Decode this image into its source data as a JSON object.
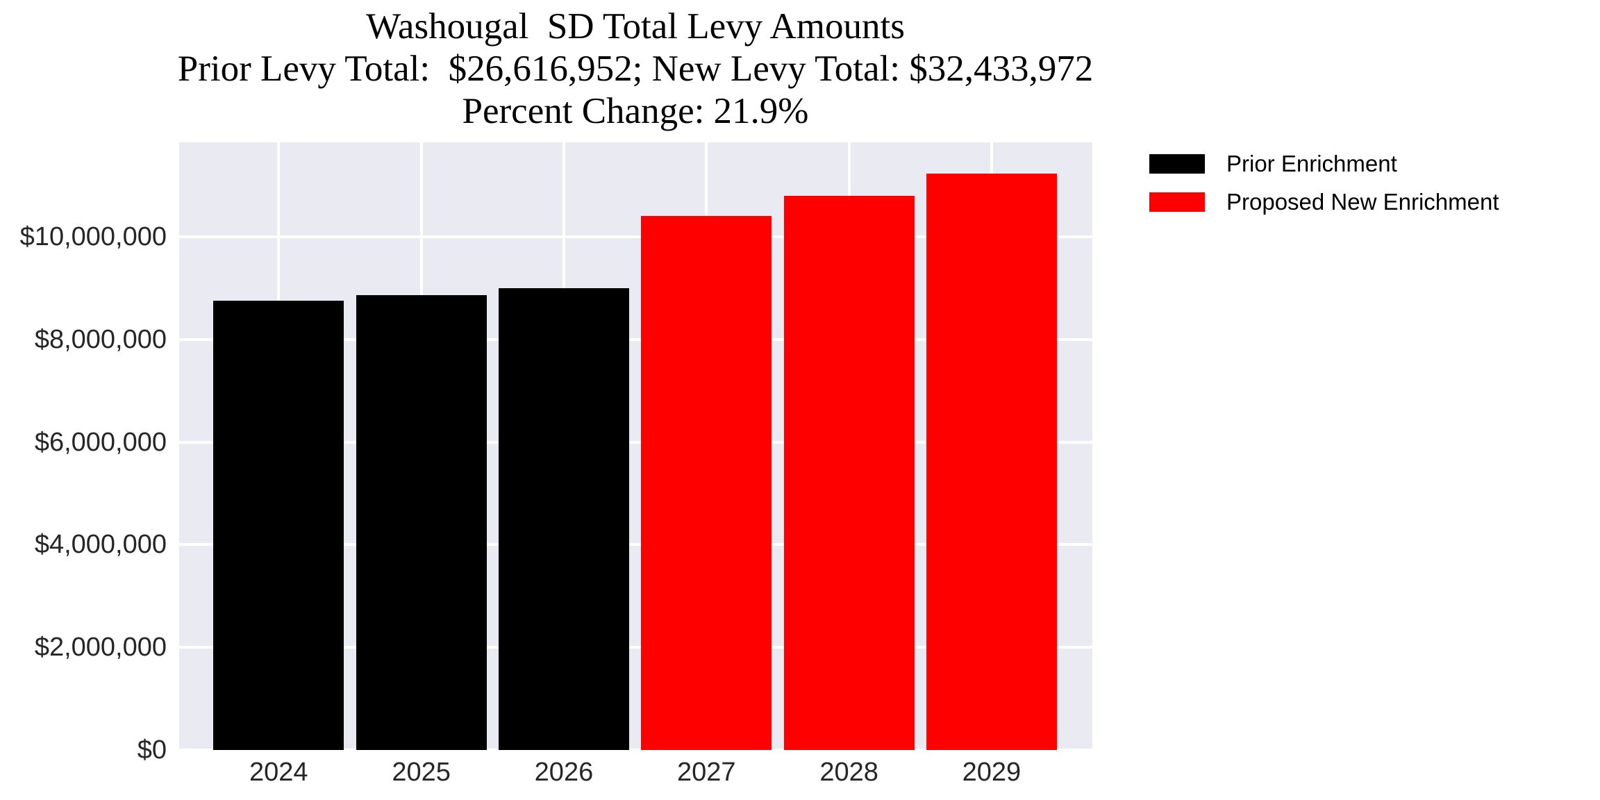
{
  "figure": {
    "title_line1": "Washougal  SD Total Levy Amounts",
    "title_line2": "Prior Levy Total:  $26,616,952; New Levy Total: $32,433,972",
    "title_line3": "Percent Change: 21.9%"
  },
  "legend": {
    "items": [
      {
        "label": "Prior Enrichment",
        "color": "#000000"
      },
      {
        "label": "Proposed New Enrichment",
        "color": "#ff0000"
      }
    ]
  },
  "chart_data": {
    "type": "bar",
    "title": "Washougal  SD Total Levy Amounts",
    "subtitle": "Prior Levy Total:  $26,616,952; New Levy Total: $32,433,972",
    "subtitle2": "Percent Change: 21.9%",
    "prior_levy_total": 26616952,
    "new_levy_total": 32433972,
    "percent_change": 21.9,
    "categories": [
      "2024",
      "2025",
      "2026",
      "2027",
      "2028",
      "2029"
    ],
    "series": [
      {
        "name": "Prior Enrichment",
        "color": "#000000",
        "values": [
          8750000,
          8870000,
          8996952,
          null,
          null,
          null
        ]
      },
      {
        "name": "Proposed New Enrichment",
        "color": "#ff0000",
        "values": [
          null,
          null,
          null,
          10400000,
          10800000,
          11233972
        ]
      }
    ],
    "xlabel": "",
    "ylabel": "",
    "ylim": [
      0,
      11840000
    ],
    "yticks": [
      0,
      2000000,
      4000000,
      6000000,
      8000000,
      10000000
    ],
    "ytick_labels": [
      "$0",
      "$2,000,000",
      "$4,000,000",
      "$6,000,000",
      "$8,000,000",
      "$10,000,000"
    ],
    "grid": true,
    "plot_background": "#eaeaf2",
    "gridline_color": "#ffffff",
    "legend_position": "upper right, outside plot"
  }
}
